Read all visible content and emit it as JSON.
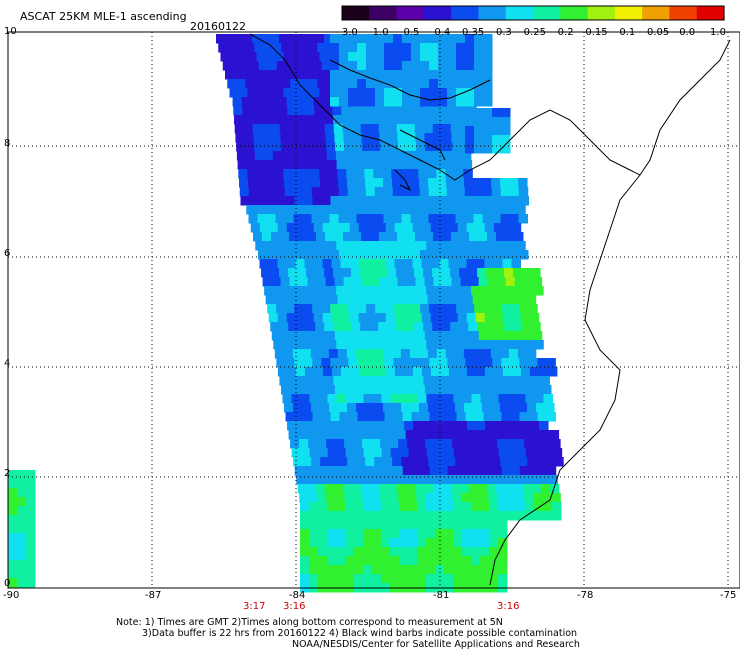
{
  "header": {
    "title": "ASCAT 25KM MLE-1 ascending",
    "date": "20160122"
  },
  "colorbar": {
    "labels": [
      "-3.0",
      "-1.0",
      "-0.5",
      "-0.4",
      "-0.35",
      "-0.3",
      "-0.25",
      "-0.2",
      "-0.15",
      "-0.1",
      "-0.05",
      "0.0",
      "1.0"
    ],
    "colors": [
      "#1a0018",
      "#3c0066",
      "#5c00aa",
      "#2a12d0",
      "#0a4cf0",
      "#1098f0",
      "#10e0f0",
      "#10f0a0",
      "#30f030",
      "#a0f010",
      "#f0f000",
      "#f0a000",
      "#f04000",
      "#e00000"
    ]
  },
  "axes": {
    "longitude_labels": [
      "-90",
      "-87",
      "-84",
      "-81",
      "-78",
      "-75"
    ],
    "latitude_labels": [
      "0",
      "2",
      "4",
      "6",
      "8",
      "10"
    ]
  },
  "times": [
    {
      "label": "3:17"
    },
    {
      "label": "3:16"
    },
    {
      "label": "3:16"
    }
  ],
  "notes": {
    "line1": "Note: 1) Times are GMT 2)Times along bottom correspond to measurement at 5N",
    "line2": "3)Data buffer is 22 hrs from 20160122 4) Black wind barbs indicate possible contamination",
    "line3": "NOAA/NESDIS/Center for Satellite Applications and Research"
  },
  "legend_icons": {
    "map": "ascat-swath-map"
  }
}
